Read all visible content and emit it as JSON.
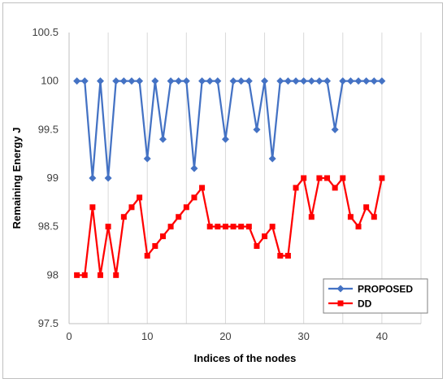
{
  "chart_data": {
    "type": "line",
    "title": "",
    "xlabel": "Indices of the nodes",
    "ylabel": "Remaining Energy J",
    "xlim": [
      0,
      45
    ],
    "ylim": [
      97.5,
      100.5
    ],
    "xticks": [
      0,
      10,
      20,
      30,
      40
    ],
    "yticks": [
      97.5,
      98,
      98.5,
      99,
      99.5,
      100,
      100.5
    ],
    "ytick_labels": [
      "97.5",
      "98",
      "98.5",
      "99",
      "99.5",
      "100",
      "100.5"
    ],
    "grid": "vertical",
    "legend_position": "bottom-right",
    "x": [
      1,
      2,
      3,
      4,
      5,
      6,
      7,
      8,
      9,
      10,
      11,
      12,
      13,
      14,
      15,
      16,
      17,
      18,
      19,
      20,
      21,
      22,
      23,
      24,
      25,
      26,
      27,
      28,
      29,
      30,
      31,
      32,
      33,
      34,
      35,
      36,
      37,
      38,
      39,
      40
    ],
    "series": [
      {
        "name": "PROPOSED",
        "color": "#4472C4",
        "marker": "diamond",
        "values": [
          100,
          100,
          99,
          100,
          99,
          100,
          100,
          100,
          100,
          99.2,
          100,
          99.4,
          100,
          100,
          100,
          99.1,
          100,
          100,
          100,
          99.4,
          100,
          100,
          100,
          99.5,
          100,
          99.2,
          100,
          100,
          100,
          100,
          100,
          100,
          100,
          99.5,
          100,
          100,
          100,
          100,
          100,
          100
        ]
      },
      {
        "name": "DD",
        "color": "#FF0000",
        "marker": "square",
        "values": [
          98,
          98,
          98.7,
          98,
          98.5,
          98,
          98.6,
          98.7,
          98.8,
          98.2,
          98.3,
          98.4,
          98.5,
          98.6,
          98.7,
          98.8,
          98.9,
          98.5,
          98.5,
          98.5,
          98.5,
          98.5,
          98.5,
          98.3,
          98.4,
          98.5,
          98.2,
          98.2,
          98.9,
          99,
          98.6,
          99,
          99,
          98.9,
          99,
          98.6,
          98.5,
          98.7,
          98.6,
          99
        ]
      }
    ]
  }
}
